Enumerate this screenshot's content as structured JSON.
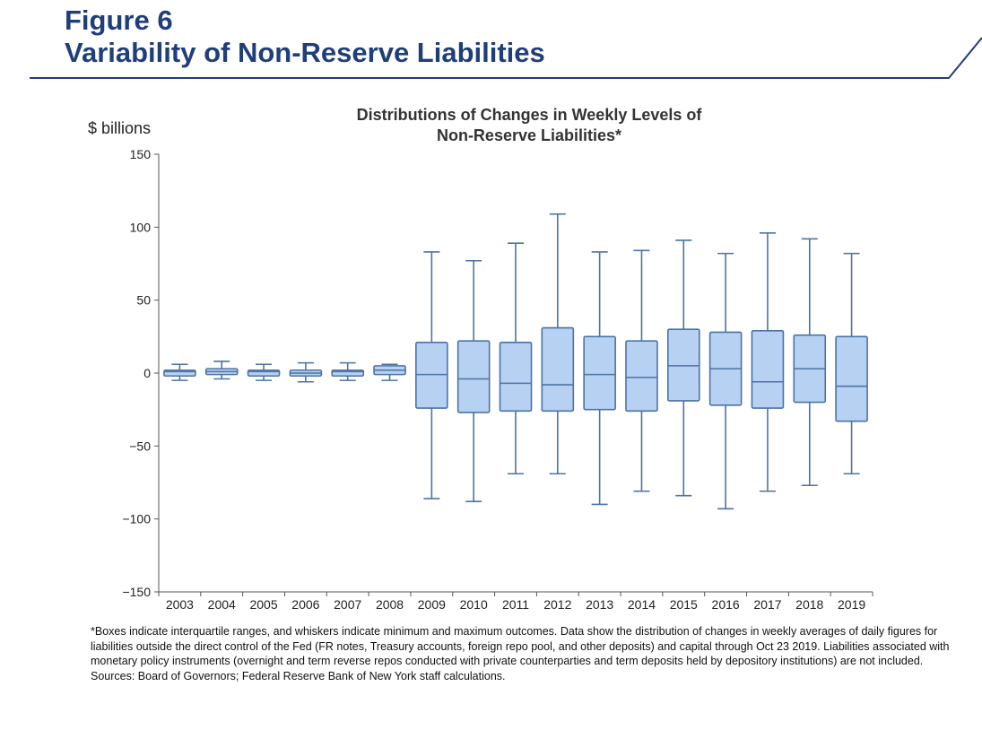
{
  "header": {
    "figure_label": "Figure 6",
    "figure_title": "Variability of Non-Reserve Liabilities"
  },
  "colors": {
    "title": "#1f3f7a",
    "box_fill": "#b7d1f3",
    "box_stroke": "#4c73a3",
    "axis": "#555555"
  },
  "chart_data": {
    "type": "boxplot",
    "title": "Distributions of Changes in Weekly Levels of Non-Reserve Liabilities*",
    "title_lines": [
      "Distributions of Changes in Weekly Levels of",
      "Non-Reserve Liabilities*"
    ],
    "ylabel": "$ billions",
    "xlabel": "",
    "ylim": [
      -150,
      150
    ],
    "yticks": [
      150,
      100,
      50,
      0,
      -50,
      -100,
      -150
    ],
    "ytick_labels": [
      "150",
      "100",
      "50",
      "0",
      "−50",
      "−100",
      "−150"
    ],
    "grid": false,
    "legend": "none",
    "categories": [
      "2003",
      "2004",
      "2005",
      "2006",
      "2007",
      "2008",
      "2009",
      "2010",
      "2011",
      "2012",
      "2013",
      "2014",
      "2015",
      "2016",
      "2017",
      "2018",
      "2019"
    ],
    "series": [
      {
        "min": [
          -5,
          -4,
          -5,
          -6,
          -5,
          -5,
          -86,
          -88,
          -69,
          -69,
          -90,
          -81,
          -84,
          -93,
          -81,
          -77,
          -69
        ],
        "q1": [
          -2,
          -1,
          -2,
          -2,
          -2,
          -1,
          -24,
          -27,
          -26,
          -26,
          -25,
          -26,
          -19,
          -22,
          -24,
          -20,
          -33
        ],
        "median": [
          1,
          1,
          1,
          0,
          1,
          2,
          -1,
          -4,
          -7,
          -8,
          -1,
          -3,
          5,
          3,
          -6,
          3,
          -9
        ],
        "q3": [
          2,
          3,
          2,
          2,
          2,
          5,
          21,
          22,
          21,
          31,
          25,
          22,
          30,
          28,
          29,
          26,
          25
        ],
        "max": [
          6,
          8,
          6,
          7,
          7,
          6,
          83,
          77,
          89,
          109,
          83,
          84,
          91,
          82,
          96,
          92,
          82
        ]
      }
    ]
  },
  "footnote": {
    "text": "*Boxes indicate interquartile ranges, and whiskers indicate minimum and maximum outcomes.  Data show the distribution of changes in weekly averages of daily figures for liabilities outside the direct control of the Fed (FR notes, Treasury accounts, foreign repo pool, and other deposits) and capital through Oct 23 2019. Liabilities associated with monetary policy instruments (overnight and term reverse repos conducted with private counterparties and term deposits held by depository institutions) are not included.",
    "sources": "Sources:  Board of Governors; Federal Reserve Bank of New York staff calculations."
  }
}
